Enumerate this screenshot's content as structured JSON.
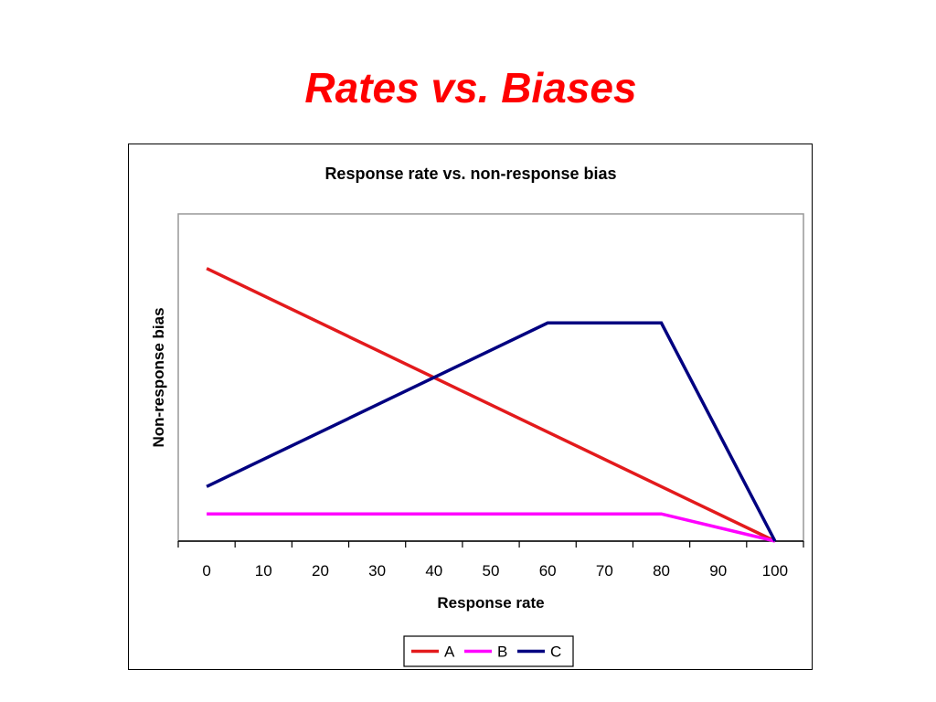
{
  "slide": {
    "title": "Rates vs. Biases"
  },
  "chart_data": {
    "type": "line",
    "title": "Response rate vs. non-response bias",
    "xlabel": "Response rate",
    "ylabel": "Non-response bias",
    "xlim": [
      -5,
      105
    ],
    "ylim": [
      0,
      12
    ],
    "x_ticks": [
      0,
      10,
      20,
      30,
      40,
      50,
      60,
      70,
      80,
      90,
      100
    ],
    "y_ticks_visible": false,
    "grid": false,
    "legend_position": "bottom",
    "series": [
      {
        "name": "A",
        "color": "#e31a1c",
        "x": [
          0,
          100
        ],
        "y": [
          10,
          0
        ]
      },
      {
        "name": "B",
        "color": "#ff00ff",
        "x": [
          0,
          80,
          100
        ],
        "y": [
          1,
          1,
          0
        ]
      },
      {
        "name": "C",
        "color": "#000080",
        "x": [
          0,
          60,
          80,
          100
        ],
        "y": [
          2,
          8,
          8,
          0
        ]
      }
    ]
  }
}
